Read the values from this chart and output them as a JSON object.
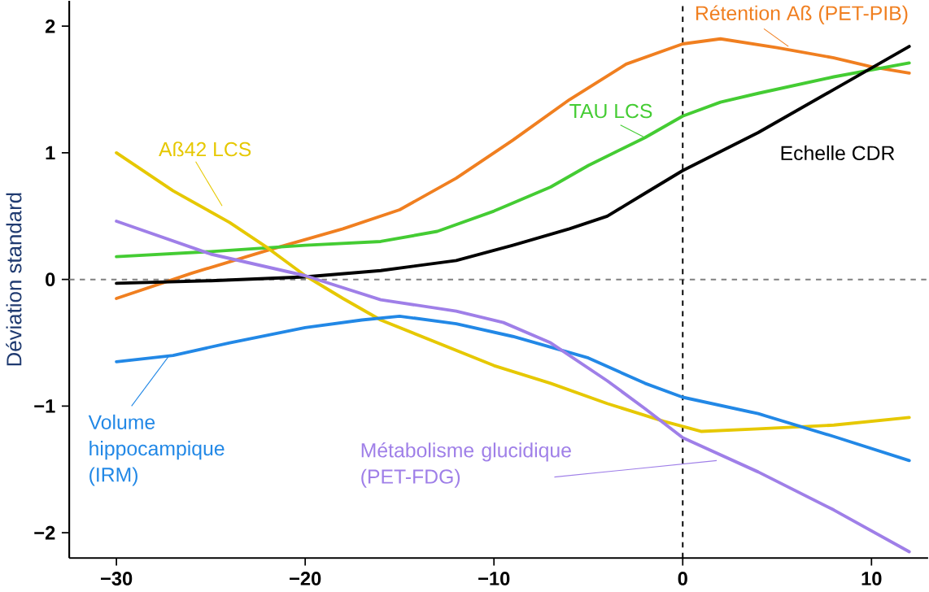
{
  "chart_data": {
    "type": "line",
    "ylabel": "Déviation standard",
    "xlim": [
      -32.5,
      13
    ],
    "ylim": [
      -2.2,
      2.2
    ],
    "xticks": [
      {
        "value": -30,
        "label": "−30"
      },
      {
        "value": -20,
        "label": "−20"
      },
      {
        "value": -10,
        "label": "−10"
      },
      0,
      10
    ],
    "yticks": [
      {
        "value": -2,
        "label": "−2"
      },
      {
        "value": -1,
        "label": "−1"
      },
      0,
      1,
      2
    ],
    "grid": false,
    "marker": "none",
    "line_style": "solid",
    "ref_lines": [
      {
        "axis": "y",
        "value": 0,
        "color": "#808080",
        "line_style": "dashed"
      },
      {
        "axis": "x",
        "value": 0,
        "color": "#000000",
        "line_style": "dashed"
      }
    ],
    "series": [
      {
        "name": "Rétention Aß (PET-PIB)",
        "color": "#f07f20",
        "x": [
          -30,
          -26,
          -22,
          -18,
          -15,
          -12,
          -9,
          -6,
          -3,
          0,
          2,
          5,
          8,
          10,
          12
        ],
        "values": [
          -0.15,
          0.05,
          0.23,
          0.4,
          0.55,
          0.8,
          1.1,
          1.42,
          1.7,
          1.86,
          1.9,
          1.83,
          1.75,
          1.68,
          1.63
        ]
      },
      {
        "name": "TAU LCS",
        "color": "#44cc33",
        "x": [
          -30,
          -25,
          -20,
          -16,
          -13,
          -10,
          -7,
          -5,
          -2,
          0,
          2,
          4,
          8,
          12
        ],
        "values": [
          0.18,
          0.22,
          0.27,
          0.3,
          0.38,
          0.54,
          0.73,
          0.9,
          1.12,
          1.29,
          1.4,
          1.47,
          1.6,
          1.71
        ]
      },
      {
        "name": "Echelle CDR",
        "color": "#000000",
        "x": [
          -30,
          -25,
          -20,
          -16,
          -12,
          -9,
          -6,
          -4,
          -2,
          0,
          4,
          8,
          12
        ],
        "values": [
          -0.03,
          -0.01,
          0.02,
          0.07,
          0.15,
          0.27,
          0.4,
          0.5,
          0.68,
          0.86,
          1.16,
          1.5,
          1.84
        ]
      },
      {
        "name": "Aß42 LCS",
        "color": "#e6c800",
        "x": [
          -30,
          -27,
          -24,
          -22,
          -20,
          -18,
          -16,
          -13,
          -10,
          -7,
          -4,
          -1,
          1,
          4,
          8,
          12
        ],
        "values": [
          1.0,
          0.7,
          0.45,
          0.25,
          0.03,
          -0.15,
          -0.32,
          -0.5,
          -0.68,
          -0.82,
          -0.98,
          -1.12,
          -1.2,
          -1.18,
          -1.15,
          -1.09
        ]
      },
      {
        "name": "Volume hippocampique (IRM)",
        "color": "#2288e6",
        "x": [
          -30,
          -27,
          -24,
          -20,
          -17,
          -15,
          -12,
          -9,
          -5,
          -2,
          0,
          4,
          8,
          12
        ],
        "values": [
          -0.65,
          -0.6,
          -0.5,
          -0.38,
          -0.32,
          -0.29,
          -0.35,
          -0.45,
          -0.62,
          -0.82,
          -0.93,
          -1.06,
          -1.24,
          -1.43
        ]
      },
      {
        "name": "Métabolisme glucidique (PET-FDG)",
        "color": "#9f7fe8",
        "x": [
          -30,
          -25,
          -20,
          -16,
          -12,
          -9.5,
          -7,
          -4,
          -2,
          0,
          4,
          8,
          12
        ],
        "values": [
          0.46,
          0.2,
          0.03,
          -0.16,
          -0.25,
          -0.34,
          -0.5,
          -0.8,
          -1.02,
          -1.25,
          -1.52,
          -1.82,
          -2.15
        ]
      }
    ]
  }
}
